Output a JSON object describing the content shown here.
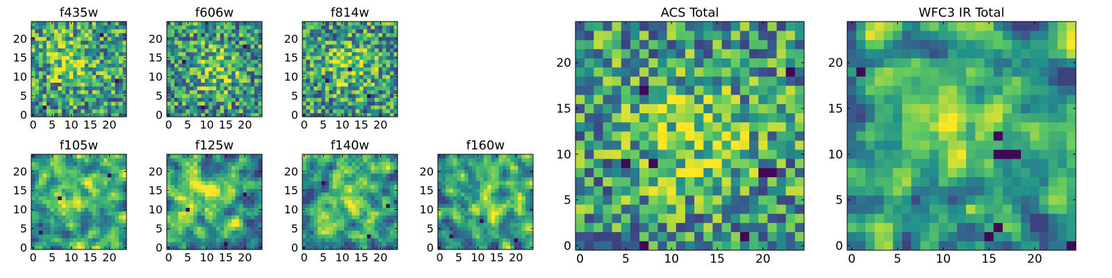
{
  "figure": {
    "title": "",
    "colormap": [
      "#440154",
      "#3b528b",
      "#21918c",
      "#5ec962",
      "#fde725"
    ]
  },
  "chart_data": [
    {
      "type": "heatmap",
      "title": "f435w",
      "grid_size": 25,
      "xlim": [
        -0.5,
        24.5
      ],
      "ylim": [
        -0.5,
        24.5
      ],
      "x_ticks": [
        0,
        5,
        10,
        15,
        20
      ],
      "y_ticks": [
        0,
        5,
        10,
        15,
        20
      ],
      "value_range": [
        0,
        1
      ],
      "seed": 11,
      "smoothing": 0,
      "bias": 0.62,
      "bright_spot": [
        10,
        14
      ],
      "dark_spots": [
        [
          3,
          2
        ],
        [
          18,
          21
        ],
        [
          22,
          9
        ]
      ]
    },
    {
      "type": "heatmap",
      "title": "f606w",
      "grid_size": 25,
      "xlim": [
        -0.5,
        24.5
      ],
      "ylim": [
        -0.5,
        24.5
      ],
      "x_ticks": [
        0,
        5,
        10,
        15,
        20
      ],
      "y_ticks": [
        0,
        5,
        10,
        15,
        20
      ],
      "value_range": [
        0,
        1
      ],
      "seed": 23,
      "smoothing": 0,
      "bias": 0.55,
      "bright_spot": [
        12,
        12
      ],
      "dark_spots": [
        [
          9,
          2
        ],
        [
          20,
          18
        ],
        [
          4,
          14
        ]
      ]
    },
    {
      "type": "heatmap",
      "title": "f814w",
      "grid_size": 25,
      "xlim": [
        -0.5,
        24.5
      ],
      "ylim": [
        -0.5,
        24.5
      ],
      "x_ticks": [
        0,
        5,
        10,
        15,
        20
      ],
      "y_ticks": [
        0,
        5,
        10,
        15,
        20
      ],
      "value_range": [
        0,
        1
      ],
      "seed": 37,
      "smoothing": 0,
      "bias": 0.58,
      "bright_spot": [
        12,
        13
      ],
      "dark_spots": [
        [
          12,
          12
        ],
        [
          6,
          9
        ],
        [
          17,
          5
        ]
      ]
    },
    {
      "type": "heatmap",
      "title": "f105w",
      "grid_size": 25,
      "xlim": [
        -0.5,
        24.5
      ],
      "ylim": [
        -0.5,
        24.5
      ],
      "x_ticks": [
        0,
        5,
        10,
        15,
        20
      ],
      "y_ticks": [
        0,
        5,
        10,
        15,
        20
      ],
      "value_range": [
        0,
        1
      ],
      "seed": 41,
      "smoothing": 1,
      "bias": 0.66,
      "bright_spot": [
        11,
        14
      ],
      "dark_spots": [
        [
          7,
          13
        ],
        [
          20,
          19
        ],
        [
          2,
          4
        ]
      ]
    },
    {
      "type": "heatmap",
      "title": "f125w",
      "grid_size": 25,
      "xlim": [
        -0.5,
        24.5
      ],
      "ylim": [
        -0.5,
        24.5
      ],
      "x_ticks": [
        0,
        5,
        10,
        15,
        20
      ],
      "y_ticks": [
        0,
        5,
        10,
        15,
        20
      ],
      "value_range": [
        0,
        1
      ],
      "seed": 53,
      "smoothing": 1,
      "bias": 0.64,
      "bright_spot": [
        10,
        15
      ],
      "dark_spots": [
        [
          15,
          1
        ],
        [
          20,
          14
        ],
        [
          5,
          10
        ]
      ]
    },
    {
      "type": "heatmap",
      "title": "f140w",
      "grid_size": 25,
      "xlim": [
        -0.5,
        24.5
      ],
      "ylim": [
        -0.5,
        24.5
      ],
      "x_ticks": [
        0,
        5,
        10,
        15,
        20
      ],
      "y_ticks": [
        0,
        5,
        10,
        15,
        20
      ],
      "value_range": [
        0,
        1
      ],
      "seed": 67,
      "smoothing": 1,
      "bias": 0.64,
      "bright_spot": [
        11,
        14
      ],
      "dark_spots": [
        [
          5,
          17
        ],
        [
          17,
          3
        ],
        [
          22,
          11
        ]
      ]
    },
    {
      "type": "heatmap",
      "title": "f160w",
      "grid_size": 25,
      "xlim": [
        -0.5,
        24.5
      ],
      "ylim": [
        -0.5,
        24.5
      ],
      "x_ticks": [
        0,
        5,
        10,
        15,
        20
      ],
      "y_ticks": [
        0,
        5,
        10,
        15,
        20
      ],
      "value_range": [
        0,
        1
      ],
      "seed": 79,
      "smoothing": 1,
      "bias": 0.62,
      "bright_spot": [
        13,
        12
      ],
      "dark_spots": [
        [
          3,
          3
        ],
        [
          11,
          7
        ],
        [
          20,
          2
        ]
      ]
    },
    {
      "type": "heatmap",
      "title": "ACS Total",
      "grid_size": 25,
      "xlim": [
        -0.5,
        24.5
      ],
      "ylim": [
        -0.5,
        24.5
      ],
      "x_ticks": [
        0,
        5,
        10,
        15,
        20
      ],
      "y_ticks": [
        0,
        5,
        10,
        15,
        20
      ],
      "value_range": [
        0,
        1
      ],
      "seed": 97,
      "smoothing": 0,
      "bias": 0.6,
      "bright_spot": [
        12,
        12
      ],
      "dark_spots": [
        [
          7,
          17
        ],
        [
          5,
          9
        ],
        [
          8,
          9
        ],
        [
          20,
          8
        ],
        [
          21,
          8
        ],
        [
          18,
          1
        ],
        [
          7,
          0
        ],
        [
          23,
          19
        ]
      ]
    },
    {
      "type": "heatmap",
      "title": "WFC3 IR Total",
      "grid_size": 25,
      "xlim": [
        -0.5,
        24.5
      ],
      "ylim": [
        -0.5,
        24.5
      ],
      "x_ticks": [
        0,
        5,
        10,
        15,
        20
      ],
      "y_ticks": [
        0,
        5,
        10,
        15,
        20
      ],
      "value_range": [
        0,
        1
      ],
      "seed": 113,
      "smoothing": 1,
      "bias": 0.58,
      "bright_spot": [
        10,
        14
      ],
      "dark_spots": [
        [
          16,
          10
        ],
        [
          17,
          10
        ],
        [
          18,
          10
        ],
        [
          16,
          12
        ],
        [
          1,
          19
        ],
        [
          15,
          1
        ],
        [
          16,
          2
        ],
        [
          24,
          0
        ]
      ]
    }
  ]
}
